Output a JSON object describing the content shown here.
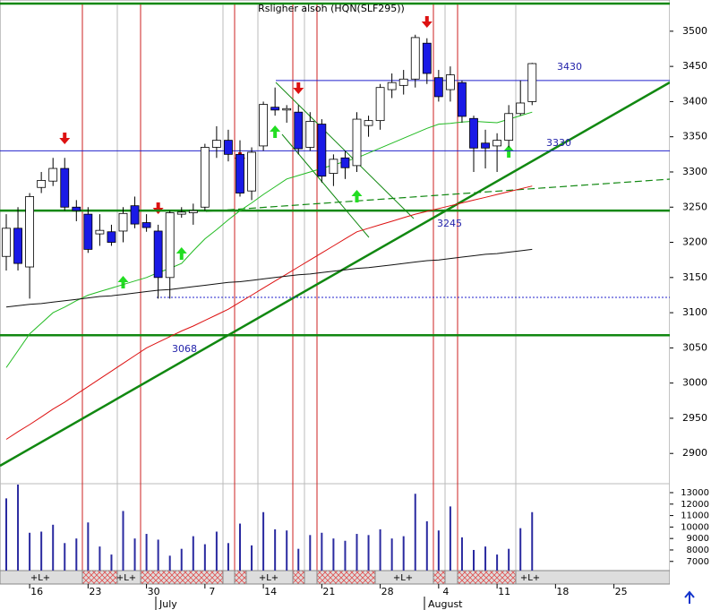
{
  "chart_data": {
    "type": "candlestick",
    "title": "Rsligher alsoh (HQN(SLF295))",
    "categories": [
      null,
      null,
      "16",
      null,
      null,
      null,
      null,
      "23",
      null,
      null,
      null,
      null,
      "30",
      null,
      null,
      null,
      null,
      "7",
      null,
      null,
      null,
      null,
      "14",
      null,
      null,
      null,
      null,
      "21",
      null,
      null,
      null,
      null,
      "28",
      null,
      null,
      null,
      null,
      "4",
      null,
      null,
      null,
      null,
      "11",
      null,
      null,
      null,
      null,
      "18",
      null,
      null,
      null,
      null,
      "25",
      null,
      null,
      null,
      null
    ],
    "months": [
      "July",
      "August"
    ],
    "open": [
      3180,
      3220,
      3165,
      3278,
      3287,
      3305,
      3250,
      3240,
      3212,
      3215,
      3216,
      3252,
      3228,
      3216,
      3150,
      3240,
      3242,
      3250,
      3335,
      3345,
      3325,
      3273,
      3337,
      3392,
      3388,
      3385,
      3335,
      3368,
      3298,
      3320,
      3309,
      3366,
      3373,
      3417,
      3423,
      3432,
      3483,
      3434,
      3417,
      3427,
      3376,
      3341,
      3337,
      3345,
      3383,
      3400,
      null,
      null,
      null,
      null,
      null,
      null,
      null,
      null,
      null,
      null,
      null
    ],
    "high": [
      3240,
      3250,
      3270,
      3300,
      3320,
      3320,
      3260,
      3250,
      3240,
      3225,
      3250,
      3265,
      3240,
      3225,
      3245,
      3250,
      3255,
      3340,
      3365,
      3360,
      3345,
      3335,
      3400,
      3420,
      3395,
      3395,
      3385,
      3375,
      3325,
      3330,
      3385,
      3380,
      3425,
      3440,
      3445,
      3495,
      3490,
      3445,
      3450,
      3430,
      3380,
      3360,
      3355,
      3395,
      3430,
      3455,
      null,
      null,
      null,
      null,
      null,
      null,
      null,
      null,
      null,
      null,
      null
    ],
    "low": [
      3160,
      3160,
      3120,
      3270,
      3280,
      3245,
      3230,
      3185,
      3195,
      3195,
      3200,
      3220,
      3215,
      3120,
      3120,
      3235,
      3225,
      3245,
      3320,
      3315,
      3265,
      3260,
      3330,
      3380,
      3370,
      3325,
      3330,
      3285,
      3280,
      3290,
      3300,
      3350,
      3360,
      3405,
      3410,
      3420,
      3425,
      3400,
      3400,
      3370,
      3300,
      3305,
      3300,
      3335,
      3380,
      3395,
      null,
      null,
      null,
      null,
      null,
      null,
      null,
      null,
      null,
      null,
      null
    ],
    "close": [
      3220,
      3170,
      3265,
      3288,
      3305,
      3250,
      3245,
      3190,
      3217,
      3200,
      3241,
      3226,
      3221,
      3150,
      3242,
      3243,
      3245,
      3335,
      3345,
      3325,
      3270,
      3328,
      3396,
      3388,
      3390,
      3333,
      3372,
      3294,
      3318,
      3306,
      3375,
      3373,
      3420,
      3427,
      3432,
      3491,
      3440,
      3407,
      3438,
      3379,
      3334,
      3334,
      3345,
      3383,
      3398,
      3454,
      null,
      null,
      null,
      null,
      null,
      null,
      null,
      null,
      null,
      null,
      null
    ],
    "up_color": "#ffffff",
    "down_color": "#1a1ae6",
    "moving_averages": [
      {
        "color": "#22bb22",
        "values": [
          3022,
          3046,
          3070,
          3085,
          3100,
          3108,
          3117,
          3125,
          3130,
          3135,
          3140,
          3145,
          3150,
          3157,
          3163,
          3170,
          3188,
          3205,
          3218,
          3232,
          3245,
          3256,
          3268,
          3279,
          3290,
          3295,
          3300,
          3305,
          3310,
          3315,
          3320,
          3327,
          3334,
          3341,
          3348,
          3355,
          3362,
          3368,
          3369,
          3371,
          3372,
          3371,
          3370,
          3375,
          3380,
          3385,
          null,
          null,
          null,
          null,
          null,
          null,
          null,
          null,
          null,
          null,
          null
        ]
      },
      {
        "color": "#dd1111",
        "values": [
          2920,
          2931,
          2941,
          2952,
          2963,
          2973,
          2984,
          2995,
          3006,
          3017,
          3028,
          3039,
          3050,
          3058,
          3066,
          3074,
          3081,
          3089,
          3097,
          3105,
          3115,
          3125,
          3135,
          3145,
          3155,
          3165,
          3175,
          3185,
          3195,
          3205,
          3215,
          3220,
          3225,
          3230,
          3235,
          3240,
          3244,
          3248,
          3252,
          3256,
          3260,
          3264,
          3268,
          3272,
          3276,
          3280,
          null,
          null,
          null,
          null,
          null,
          null,
          null,
          null,
          null,
          null,
          null
        ]
      },
      {
        "color": "#111111",
        "values": [
          3108,
          3110,
          3112,
          3113,
          3115,
          3117,
          3119,
          3121,
          3123,
          3124,
          3126,
          3128,
          3130,
          3132,
          3133,
          3135,
          3137,
          3139,
          3141,
          3143,
          3144,
          3146,
          3148,
          3150,
          3152,
          3154,
          3155,
          3157,
          3159,
          3161,
          3163,
          3164,
          3166,
          3168,
          3170,
          3172,
          3174,
          3175,
          3177,
          3179,
          3181,
          3183,
          3184,
          3186,
          3188,
          3190,
          null,
          null,
          null,
          null,
          null,
          null,
          null,
          null,
          null,
          null,
          null
        ]
      }
    ],
    "levels": [
      {
        "value": 3430,
        "label": 3430,
        "color": "#2222cc"
      },
      {
        "value": 3330,
        "label": 3330,
        "color": "#2222cc"
      },
      {
        "value": 3245,
        "label": 3245,
        "color": "#118811"
      },
      {
        "value": 3068,
        "label": 3068,
        "color": "#118811"
      }
    ],
    "ylim": [
      2857,
      3538
    ],
    "yticks": [
      2900,
      2950,
      3000,
      3050,
      3100,
      3150,
      3200,
      3250,
      3300,
      3350,
      3400,
      3450,
      3500
    ],
    "volume": {
      "color": "#2a2aa0",
      "values": [
        12500,
        13700,
        9500,
        9600,
        10200,
        8600,
        9000,
        10400,
        8300,
        7600,
        11400,
        9000,
        9400,
        8900,
        7500,
        8100,
        9200,
        8500,
        9600,
        8600,
        10300,
        8400,
        11300,
        9800,
        9700,
        8100,
        9300,
        9500,
        9000,
        8800,
        9400,
        9300,
        9800,
        9000,
        9200,
        12900,
        10500,
        9700,
        11800,
        9100,
        8000,
        8300,
        7600,
        8100,
        9900,
        11300,
        null,
        null,
        null,
        null,
        null,
        null,
        null,
        null,
        null,
        null,
        null
      ],
      "ylim": [
        6200,
        13780
      ],
      "yticks": [
        7000,
        8000,
        9000,
        10000,
        11000,
        12000,
        13000
      ]
    },
    "strip_labels": [
      "+L+",
      "+L+",
      "+L+",
      "+L+",
      "+L+"
    ]
  }
}
